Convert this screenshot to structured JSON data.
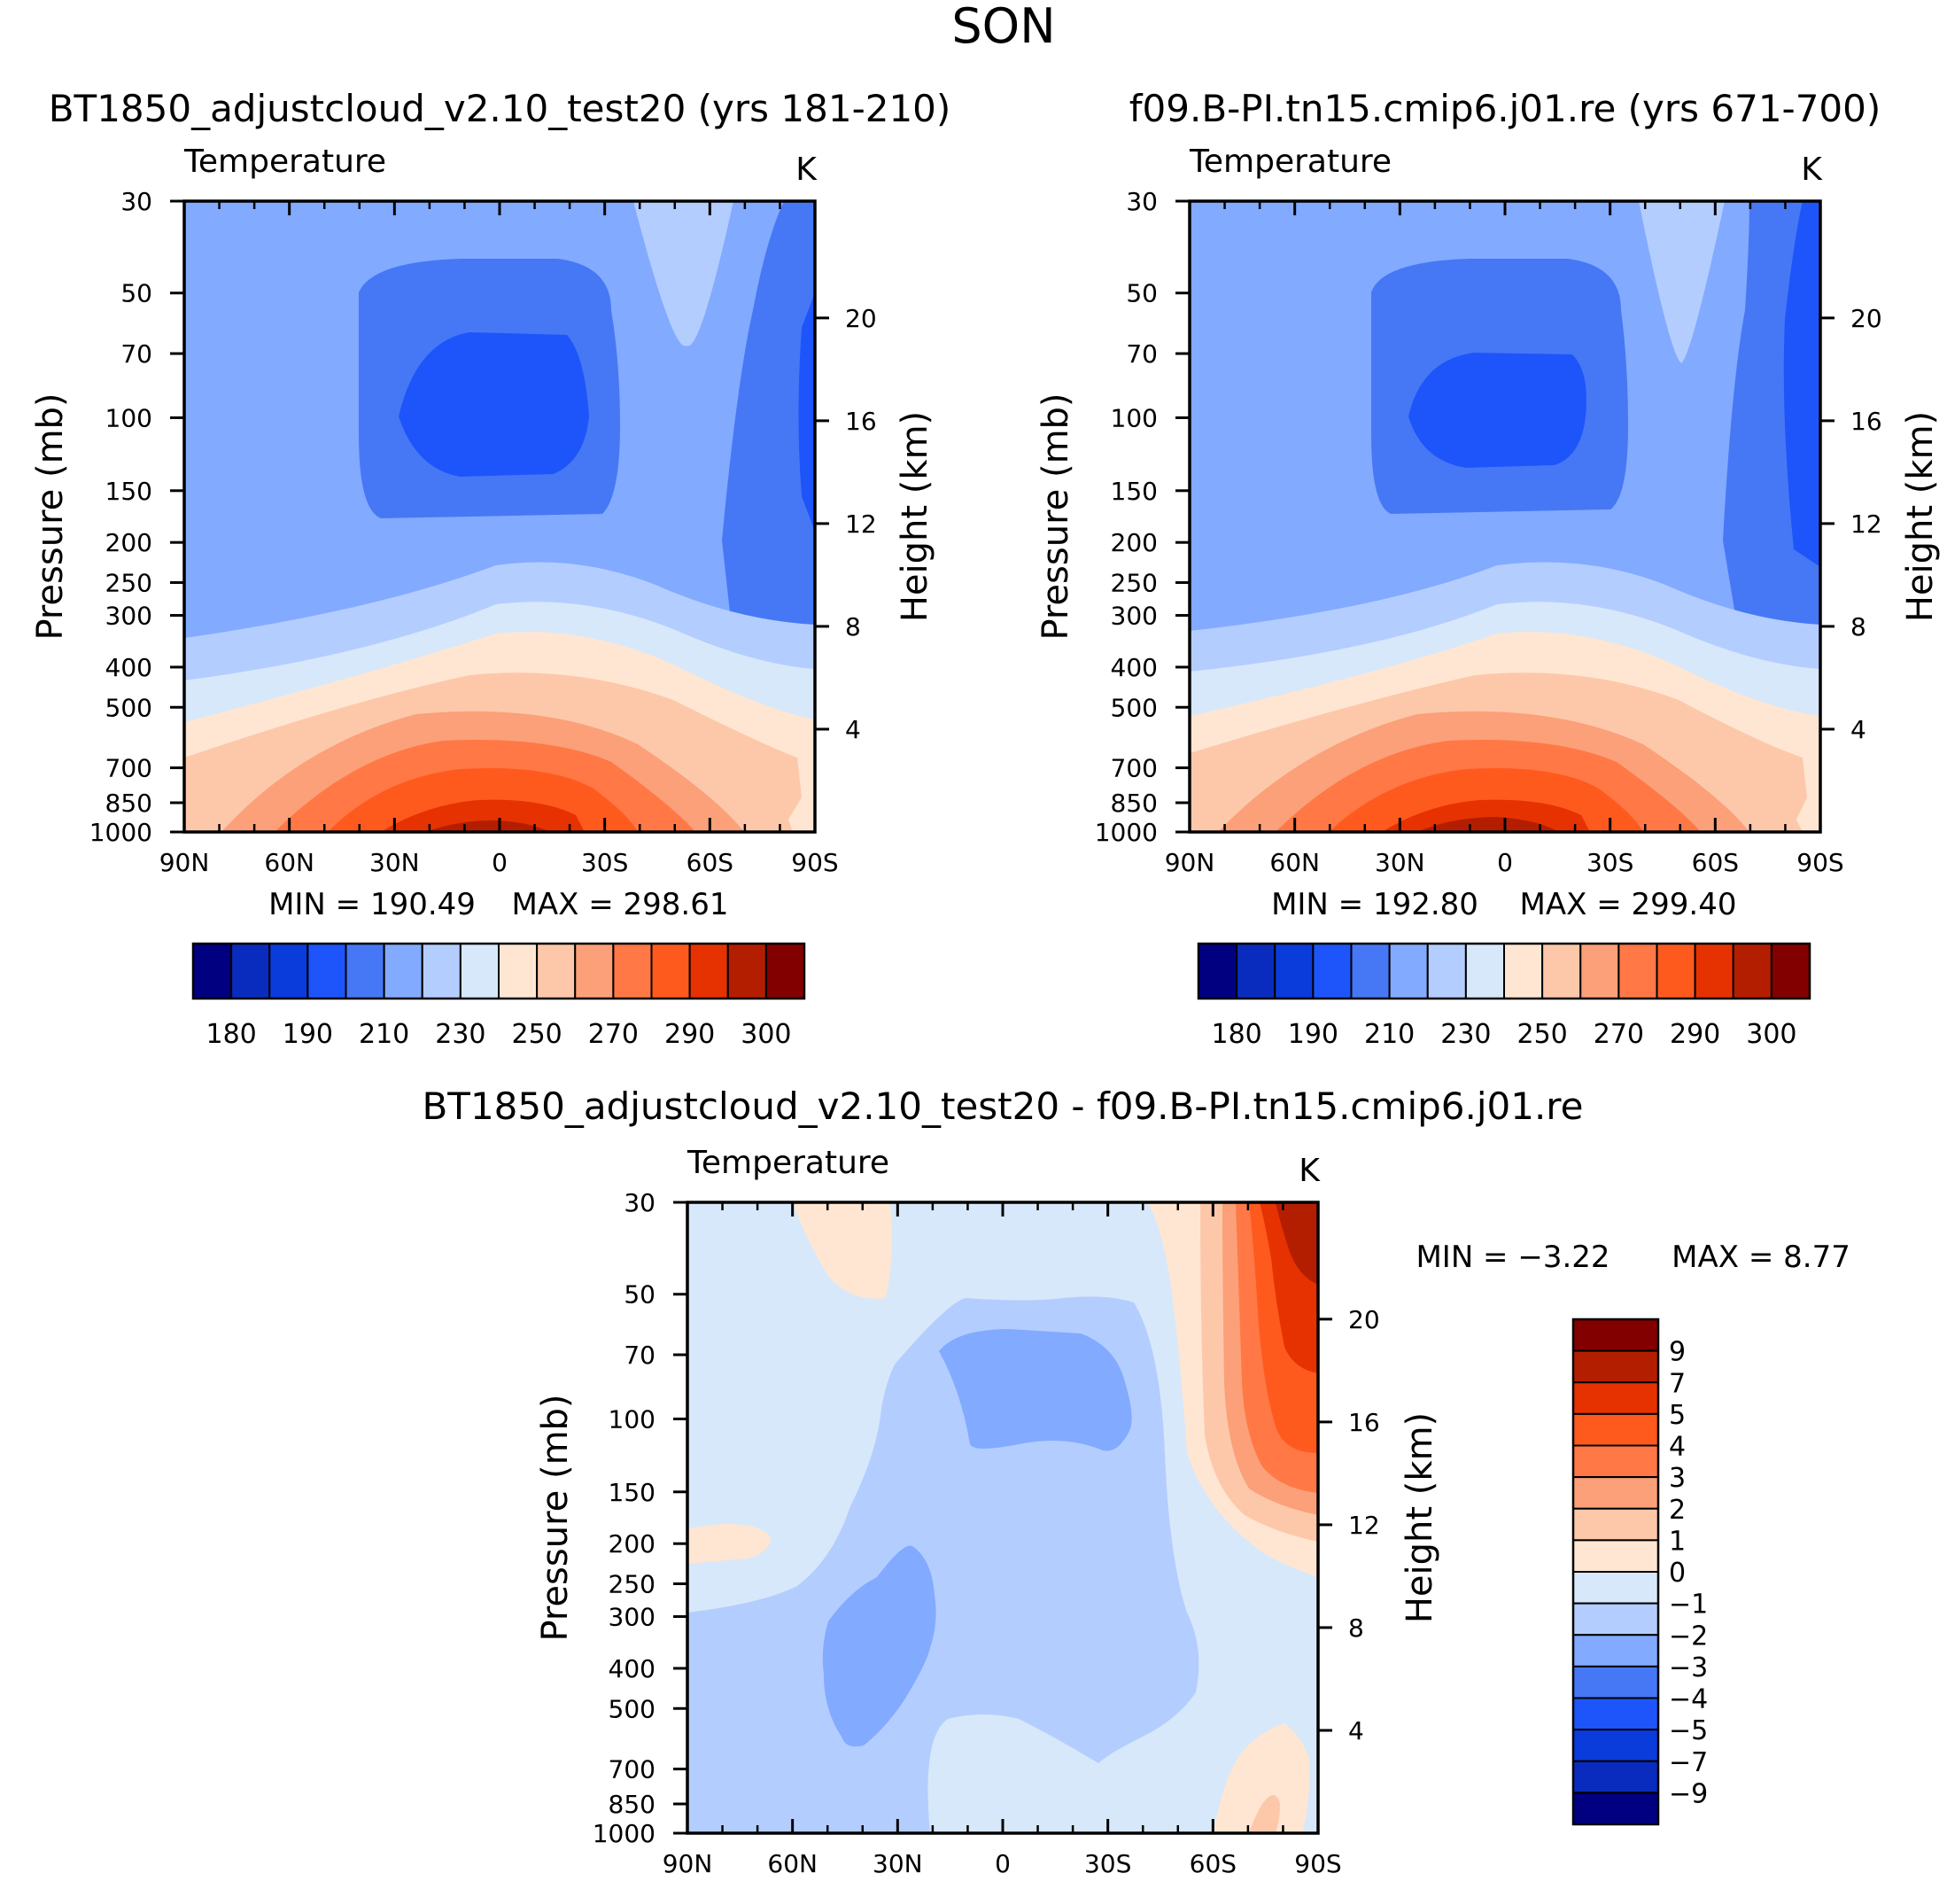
{
  "season": "SON",
  "colors": {
    "abs": [
      "#000080",
      "#0a2cbe",
      "#0a3cdc",
      "#1e55fa",
      "#4678f5",
      "#82aaff",
      "#b4cdff",
      "#d7e8fa",
      "#ffe6d2",
      "#fdc8aa",
      "#fba078",
      "#ff7846",
      "#ff5a1e",
      "#e63200",
      "#b41e00",
      "#820000"
    ],
    "diff": [
      "#000080",
      "#0a2cbe",
      "#0a3cdc",
      "#1e55fa",
      "#4678f5",
      "#82aaff",
      "#b4cdff",
      "#d7e8fa",
      "#ffe6d2",
      "#fdc8aa",
      "#fba078",
      "#ff7846",
      "#ff5a1e",
      "#e63200",
      "#b41e00",
      "#820000"
    ]
  },
  "chart_data": [
    {
      "type": "contour",
      "title": "BT1850_adjustcloud_v2.10_test20 (yrs 181-210)",
      "left_label": "Temperature",
      "right_label": "K",
      "ylabel": "Pressure (mb)",
      "ylabel2": "Height (km)",
      "xticks": [
        "90N",
        "60N",
        "30N",
        "0",
        "30S",
        "60S",
        "90S"
      ],
      "yticks": [
        "30",
        "50",
        "70",
        "100",
        "150",
        "200",
        "250",
        "300",
        "400",
        "500",
        "700",
        "850",
        "1000"
      ],
      "y2ticks": [
        "20",
        "16",
        "12",
        "8",
        "4"
      ],
      "min_label": "MIN = 190.49",
      "max_label": "MAX = 298.61",
      "min": 190.49,
      "max": 298.61,
      "colorbar_labels": [
        "180",
        "190",
        "210",
        "230",
        "250",
        "270",
        "290",
        "300"
      ]
    },
    {
      "type": "contour",
      "title": "f09.B-PI.tn15.cmip6.j01.re (yrs 671-700)",
      "left_label": "Temperature",
      "right_label": "K",
      "ylabel": "Pressure (mb)",
      "ylabel2": "Height (km)",
      "xticks": [
        "90N",
        "60N",
        "30N",
        "0",
        "30S",
        "60S",
        "90S"
      ],
      "yticks": [
        "30",
        "50",
        "70",
        "100",
        "150",
        "200",
        "250",
        "300",
        "400",
        "500",
        "700",
        "850",
        "1000"
      ],
      "y2ticks": [
        "20",
        "16",
        "12",
        "8",
        "4"
      ],
      "min_label": "MIN = 192.80",
      "max_label": "MAX = 299.40",
      "min": 192.8,
      "max": 299.4,
      "colorbar_labels": [
        "180",
        "190",
        "210",
        "230",
        "250",
        "270",
        "290",
        "300"
      ]
    },
    {
      "type": "contour",
      "title": "BT1850_adjustcloud_v2.10_test20 - f09.B-PI.tn15.cmip6.j01.re",
      "left_label": "Temperature",
      "right_label": "K",
      "ylabel": "Pressure (mb)",
      "ylabel2": "Height (km)",
      "xticks": [
        "90N",
        "60N",
        "30N",
        "0",
        "30S",
        "60S",
        "90S"
      ],
      "yticks": [
        "30",
        "50",
        "70",
        "100",
        "150",
        "200",
        "250",
        "300",
        "400",
        "500",
        "700",
        "850",
        "1000"
      ],
      "y2ticks": [
        "20",
        "16",
        "12",
        "8",
        "4"
      ],
      "min_label": "MIN = -3.22",
      "max_label": "MAX = 8.77",
      "min": -3.22,
      "max": 8.77,
      "colorbar_labels": [
        "9",
        "7",
        "5",
        "4",
        "3",
        "2",
        "1",
        "0",
        "-1",
        "-2",
        "-3",
        "-4",
        "-5",
        "-7",
        "-9"
      ]
    }
  ]
}
